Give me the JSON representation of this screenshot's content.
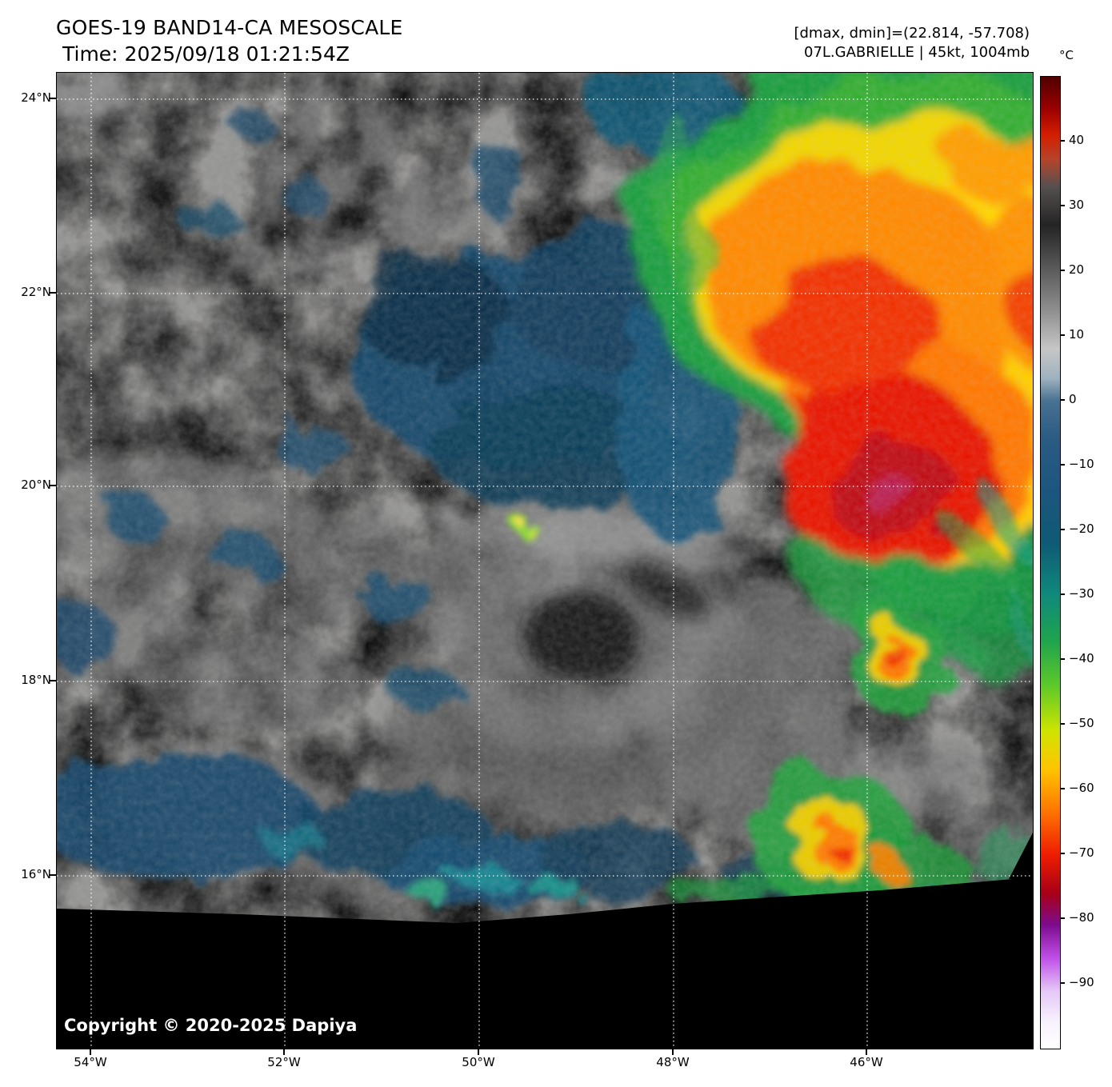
{
  "header": {
    "title": "GOES-19 BAND14-CA MESOSCALE",
    "time_line": "Time: 2025/09/18 01:21:54Z",
    "range_info": "[dmax, dmin]=(22.814, -57.708)",
    "storm_info": "07L.GABRIELLE | 45kt, 1004mb"
  },
  "colorbar": {
    "unit": "°C",
    "tick_values": [
      40,
      30,
      20,
      10,
      0,
      -10,
      -20,
      -30,
      -40,
      -50,
      -60,
      -70,
      -80,
      -90
    ],
    "tick_labels": [
      "40",
      "30",
      "20",
      "10",
      "0",
      "−10",
      "−20",
      "−30",
      "−40",
      "−50",
      "−60",
      "−70",
      "−80",
      "−90"
    ],
    "scale_top_value": 50,
    "scale_bottom_value": -100,
    "gradient_stops": [
      [
        0.0,
        "#500000"
      ],
      [
        0.033,
        "#9b0000"
      ],
      [
        0.06,
        "#d41e00"
      ],
      [
        0.085,
        "#b5442a"
      ],
      [
        0.113,
        "#565050"
      ],
      [
        0.153,
        "#242424"
      ],
      [
        0.193,
        "#555555"
      ],
      [
        0.24,
        "#8e8e8e"
      ],
      [
        0.28,
        "#c6c6c6"
      ],
      [
        0.31,
        "#9fb2c0"
      ],
      [
        0.333,
        "#497292"
      ],
      [
        0.373,
        "#2a5b83"
      ],
      [
        0.427,
        "#1c567e"
      ],
      [
        0.48,
        "#0f5a75"
      ],
      [
        0.533,
        "#0f8a7c"
      ],
      [
        0.58,
        "#1ea34e"
      ],
      [
        0.627,
        "#5ec928"
      ],
      [
        0.673,
        "#cfe400"
      ],
      [
        0.713,
        "#ffc400"
      ],
      [
        0.753,
        "#ff7a00"
      ],
      [
        0.8,
        "#ef1e00"
      ],
      [
        0.84,
        "#a80016"
      ],
      [
        0.873,
        "#7d0c8e"
      ],
      [
        0.907,
        "#c050e8"
      ],
      [
        0.94,
        "#e4c6f7"
      ],
      [
        0.973,
        "#f8f2fd"
      ],
      [
        1.0,
        "#ffffff"
      ]
    ]
  },
  "map": {
    "lat_labels": [
      "24°N",
      "22°N",
      "20°N",
      "18°N",
      "16°N"
    ],
    "lon_labels": [
      "54°W",
      "52°W",
      "50°W",
      "48°W",
      "46°W"
    ],
    "copyright": "Copyright © 2020-2025 Dapiya",
    "gridline_color": "#ffffff",
    "background_color": "#0d0d0d",
    "no_data_color": "#000000"
  }
}
